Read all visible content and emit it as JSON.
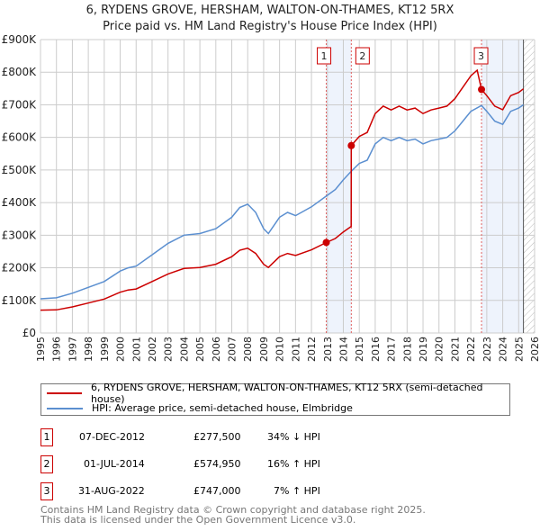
{
  "chart_data": {
    "type": "line",
    "title": "6, RYDENS GROVE, HERSHAM, WALTON-ON-THAMES, KT12 5RX",
    "subtitle": "Price paid vs. HM Land Registry's House Price Index (HPI)",
    "xlim": [
      1995,
      2026
    ],
    "ylim": [
      0,
      900000
    ],
    "x_ticks": [
      "1995",
      "1996",
      "1997",
      "1998",
      "1999",
      "2000",
      "2001",
      "2002",
      "2003",
      "2004",
      "2005",
      "2006",
      "2007",
      "2008",
      "2009",
      "2010",
      "2011",
      "2012",
      "2013",
      "2014",
      "2015",
      "2016",
      "2017",
      "2018",
      "2019",
      "2020",
      "2021",
      "2022",
      "2023",
      "2024",
      "2025",
      "2026"
    ],
    "y_ticks": [
      {
        "v": 0,
        "l": "£0"
      },
      {
        "v": 100000,
        "l": "£100K"
      },
      {
        "v": 200000,
        "l": "£200K"
      },
      {
        "v": 300000,
        "l": "£300K"
      },
      {
        "v": 400000,
        "l": "£400K"
      },
      {
        "v": 500000,
        "l": "£500K"
      },
      {
        "v": 600000,
        "l": "£600K"
      },
      {
        "v": 700000,
        "l": "£700K"
      },
      {
        "v": 800000,
        "l": "£800K"
      },
      {
        "v": 900000,
        "l": "£900K"
      }
    ],
    "grid": true,
    "series": [
      {
        "name": "6, RYDENS GROVE, HERSHAM, WALTON-ON-THAMES, KT12 5RX (semi-detached house)",
        "color": "#cc0000",
        "x": [
          1995,
          1996,
          1997,
          1998,
          1999,
          2000,
          2000.5,
          2001,
          2002,
          2003,
          2004,
          2005,
          2006,
          2007,
          2007.5,
          2008,
          2008.5,
          2009,
          2009.3,
          2010,
          2010.5,
          2011,
          2012,
          2012.93,
          2013.5,
          2014,
          2014.49,
          2014.5,
          2015,
          2015.5,
          2016,
          2016.5,
          2017,
          2017.5,
          2018,
          2018.5,
          2019,
          2019.5,
          2020,
          2020.5,
          2021,
          2021.5,
          2022,
          2022.4,
          2022.67,
          2023,
          2023.5,
          2024,
          2024.5,
          2025,
          2025.3
        ],
        "y": [
          70000,
          71000,
          80000,
          92000,
          104000,
          125000,
          132000,
          135000,
          158000,
          181000,
          198000,
          201000,
          211000,
          234000,
          254000,
          260000,
          244000,
          211000,
          201000,
          234000,
          244000,
          238000,
          255000,
          277500,
          290000,
          310000,
          327000,
          574950,
          603000,
          615000,
          673000,
          696000,
          684000,
          696000,
          684000,
          690000,
          673000,
          684000,
          690000,
          696000,
          719000,
          754000,
          789000,
          806000,
          747000,
          728000,
          696000,
          685000,
          728000,
          738000,
          749000
        ]
      },
      {
        "name": "HPI: Average price, semi-detached house, Elmbridge",
        "color": "#5b8fd0",
        "x": [
          1995,
          1996,
          1997,
          1998,
          1999,
          2000,
          2000.5,
          2001,
          2002,
          2003,
          2004,
          2005,
          2006,
          2007,
          2007.5,
          2008,
          2008.5,
          2009,
          2009.3,
          2010,
          2010.5,
          2011,
          2012,
          2012.93,
          2013.5,
          2014,
          2014.5,
          2015,
          2015.5,
          2016,
          2016.5,
          2017,
          2017.5,
          2018,
          2018.5,
          2019,
          2019.5,
          2020,
          2020.5,
          2021,
          2021.5,
          2022,
          2022.67,
          2023,
          2023.5,
          2024,
          2024.5,
          2025,
          2025.3
        ],
        "y": [
          105000,
          108000,
          122000,
          140000,
          158000,
          190000,
          200000,
          205000,
          240000,
          275000,
          300000,
          305000,
          320000,
          355000,
          385000,
          395000,
          370000,
          320000,
          305000,
          355000,
          370000,
          360000,
          387000,
          420000,
          440000,
          470000,
          496000,
          520000,
          530000,
          580000,
          600000,
          590000,
          600000,
          590000,
          595000,
          580000,
          590000,
          595000,
          600000,
          620000,
          650000,
          680000,
          698000,
          680000,
          650000,
          640000,
          680000,
          690000,
          700000
        ]
      }
    ],
    "sales": [
      {
        "n": "1",
        "date": "07-DEC-2012",
        "x": 2012.93,
        "price": "£277,500",
        "pv": 277500,
        "hpi": "34% ↓ HPI"
      },
      {
        "n": "2",
        "date": "01-JUL-2014",
        "x": 2014.5,
        "price": "£574,950",
        "pv": 574950,
        "hpi": "16% ↑ HPI"
      },
      {
        "n": "3",
        "date": "31-AUG-2022",
        "x": 2022.67,
        "price": "£747,000",
        "pv": 747000,
        "hpi": "7% ↑ HPI"
      }
    ]
  },
  "footer": {
    "line1": "Contains HM Land Registry data © Crown copyright and database right 2025.",
    "line2": "This data is licensed under the Open Government Licence v3.0."
  }
}
